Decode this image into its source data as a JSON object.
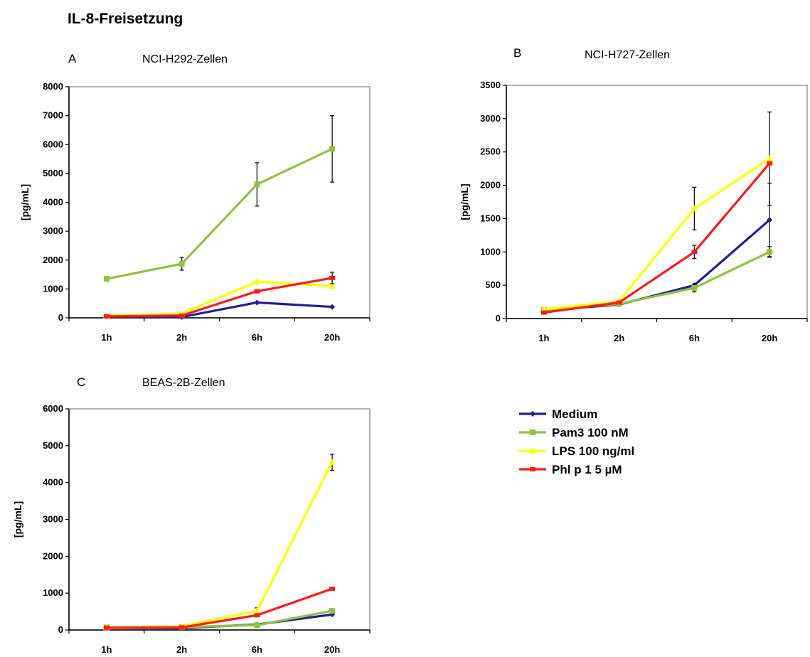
{
  "figure": {
    "title": "IL-8-Freisetzung"
  },
  "legend": [
    {
      "name": "Medium",
      "color": "#1f1f9e",
      "marker": "diamond"
    },
    {
      "name": "Pam3 100 nM",
      "color": "#8dc63f",
      "marker": "square"
    },
    {
      "name": "LPS 100 ng/ml",
      "color": "#ffff00",
      "marker": "triangle"
    },
    {
      "name": "Phl p 1 5 µM",
      "color": "#ff1a1a",
      "marker": "x"
    }
  ],
  "chart_data": [
    {
      "type": "line",
      "panel": "A",
      "title": "NCI-H292-Zellen",
      "ylabel": "[pg/mL]",
      "categories": [
        "1h",
        "2h",
        "6h",
        "20h"
      ],
      "ylim": [
        0,
        8000
      ],
      "yticks": [
        0,
        1000,
        2000,
        3000,
        4000,
        5000,
        6000,
        7000,
        8000
      ],
      "series": [
        {
          "name": "Medium",
          "values": [
            50,
            30,
            530,
            380
          ],
          "err": [
            null,
            null,
            null,
            null
          ]
        },
        {
          "name": "Pam3 100 nM",
          "values": [
            1350,
            1870,
            4620,
            5850
          ],
          "err": [
            null,
            220,
            750,
            1150
          ]
        },
        {
          "name": "LPS 100 ng/ml",
          "values": [
            80,
            150,
            1250,
            1100
          ],
          "err": [
            null,
            null,
            null,
            null
          ]
        },
        {
          "name": "Phl p 1 5 µM",
          "values": [
            50,
            80,
            920,
            1380
          ],
          "err": [
            null,
            null,
            null,
            200
          ]
        }
      ]
    },
    {
      "type": "line",
      "panel": "B",
      "title": "NCI-H727-Zellen",
      "ylabel": "[pg/mL]",
      "categories": [
        "1h",
        "2h",
        "6h",
        "20h"
      ],
      "ylim": [
        0,
        3500
      ],
      "yticks": [
        0,
        500,
        1000,
        1500,
        2000,
        2500,
        3000,
        3500
      ],
      "series": [
        {
          "name": "Medium",
          "values": [
            120,
            210,
            500,
            1480
          ],
          "err": [
            null,
            null,
            null,
            550
          ]
        },
        {
          "name": "Pam3 100 nM",
          "values": [
            130,
            220,
            460,
            1000
          ],
          "err": [
            null,
            null,
            60,
            80
          ]
        },
        {
          "name": "LPS 100 ng/ml",
          "values": [
            140,
            260,
            1650,
            2400
          ],
          "err": [
            null,
            null,
            320,
            700
          ]
        },
        {
          "name": "Phl p 1 5 µM",
          "values": [
            90,
            240,
            1000,
            2330
          ],
          "err": [
            null,
            null,
            100,
            null
          ]
        }
      ]
    },
    {
      "type": "line",
      "panel": "C",
      "title": "BEAS-2B-Zellen",
      "ylabel": "[pg/mL]",
      "categories": [
        "1h",
        "2h",
        "6h",
        "20h"
      ],
      "ylim": [
        0,
        6000
      ],
      "yticks": [
        0,
        1000,
        2000,
        3000,
        4000,
        5000,
        6000
      ],
      "series": [
        {
          "name": "Medium",
          "values": [
            60,
            50,
            150,
            420
          ],
          "err": [
            null,
            null,
            null,
            null
          ]
        },
        {
          "name": "Pam3 100 nM",
          "values": [
            70,
            80,
            130,
            520
          ],
          "err": [
            null,
            null,
            null,
            null
          ]
        },
        {
          "name": "LPS 100 ng/ml",
          "values": [
            70,
            100,
            520,
            4550
          ],
          "err": [
            null,
            null,
            80,
            220
          ]
        },
        {
          "name": "Phl p 1 5 µM",
          "values": [
            60,
            70,
            400,
            1120
          ],
          "err": [
            null,
            null,
            null,
            null
          ]
        }
      ]
    }
  ]
}
